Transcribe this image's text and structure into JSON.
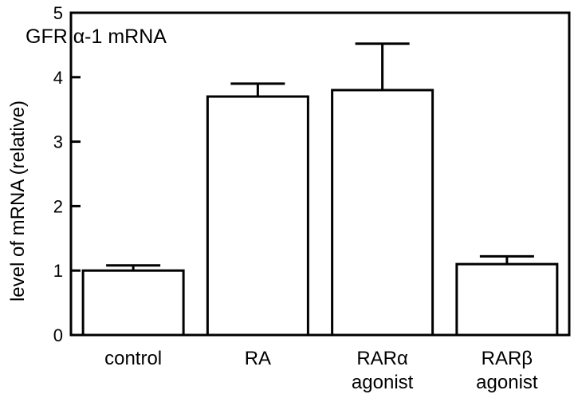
{
  "chart_data": {
    "type": "bar",
    "title": "GFR α-1 mRNA",
    "ylabel": "level of mRNA (relative)",
    "xlabel": "",
    "ylim": [
      0,
      5
    ],
    "yticks": [
      "0",
      "1",
      "2",
      "3",
      "4",
      "5"
    ],
    "categories": [
      [
        "control"
      ],
      [
        "RA"
      ],
      [
        "RARα",
        "agonist"
      ],
      [
        "RARβ",
        "agonist"
      ]
    ],
    "values": [
      1.0,
      3.7,
      3.8,
      1.1
    ],
    "errors": [
      0.08,
      0.2,
      0.72,
      0.12
    ],
    "bar_fill": "#ffffff",
    "bar_stroke": "#000000",
    "grid": false,
    "legend": "none"
  }
}
